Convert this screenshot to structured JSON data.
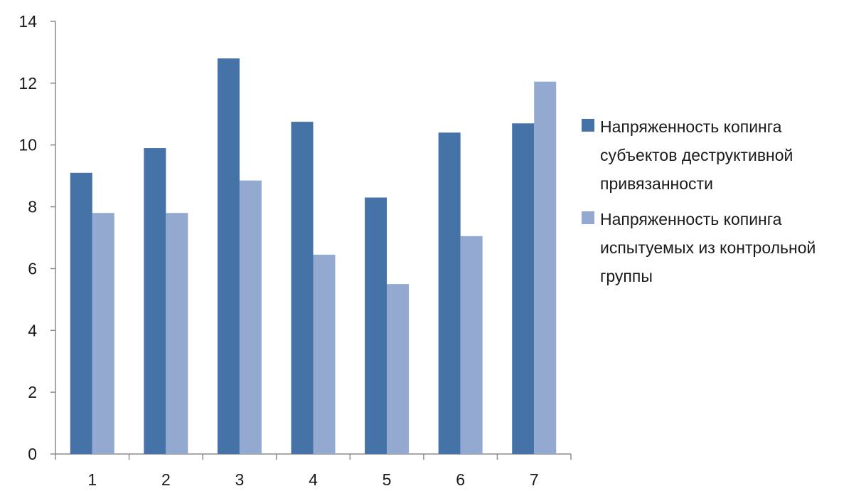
{
  "chart_data": {
    "type": "bar",
    "categories": [
      "1",
      "2",
      "3",
      "4",
      "5",
      "6",
      "7"
    ],
    "series": [
      {
        "name": "Напряженность копинга субъектов деструктивной привязанности",
        "color": "#4572a7",
        "values": [
          9.1,
          9.9,
          12.8,
          10.75,
          8.3,
          10.4,
          10.7
        ]
      },
      {
        "name": "Напряженность копинга испытуемых из контрольной группы",
        "color": "#93a9d0",
        "values": [
          7.8,
          7.8,
          8.85,
          6.45,
          5.5,
          7.05,
          12.05
        ]
      }
    ],
    "yticks": [
      "0",
      "2",
      "4",
      "6",
      "8",
      "10",
      "12",
      "14"
    ],
    "ylim": [
      0,
      14
    ],
    "grid": false,
    "legend_position": "right"
  }
}
